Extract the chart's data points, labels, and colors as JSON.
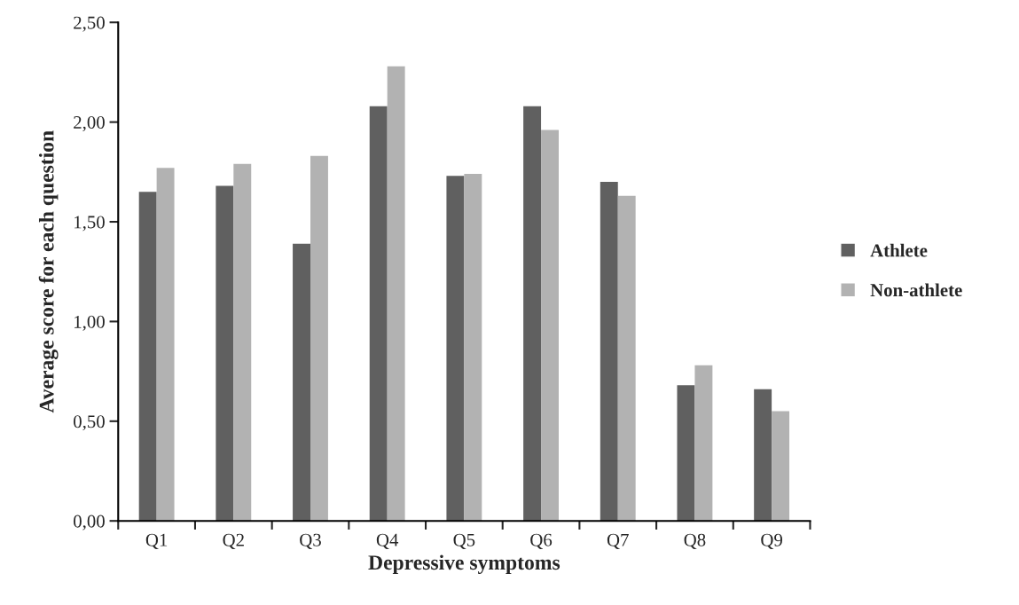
{
  "chart_data": {
    "type": "bar",
    "xlabel": "Depressive symptoms",
    "ylabel": "Average score for each question",
    "categories": [
      "Q1",
      "Q2",
      "Q3",
      "Q4",
      "Q5",
      "Q6",
      "Q7",
      "Q8",
      "Q9"
    ],
    "series": [
      {
        "name": "Athlete",
        "color": "#606060",
        "values": [
          1.65,
          1.68,
          1.39,
          2.08,
          1.73,
          2.08,
          1.7,
          0.68,
          0.66
        ]
      },
      {
        "name": "Non-athlete",
        "color": "#b2b2b2",
        "values": [
          1.77,
          1.79,
          1.83,
          2.28,
          1.74,
          1.96,
          1.63,
          0.78,
          0.55
        ]
      }
    ],
    "ylim": [
      0,
      2.5
    ],
    "yticks": [
      {
        "value": 0,
        "label": "0,00"
      },
      {
        "value": 0.5,
        "label": "0,50"
      },
      {
        "value": 1,
        "label": "1,00"
      },
      {
        "value": 1.5,
        "label": "1,50"
      },
      {
        "value": 2,
        "label": "2,00"
      },
      {
        "value": 2.5,
        "label": "2,50"
      }
    ],
    "grid": false,
    "legend": "right"
  }
}
